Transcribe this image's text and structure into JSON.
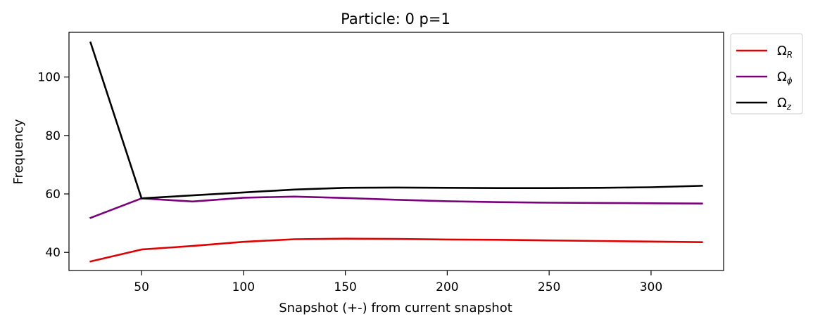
{
  "chart_data": {
    "type": "line",
    "title": "Particle: 0 p=1",
    "xlabel": "Snapshot (+-) from current snapshot",
    "ylabel": "Frequency",
    "xlim": [
      14.4,
      335.6
    ],
    "ylim": [
      33.8,
      115.3
    ],
    "xticks": [
      50,
      100,
      150,
      200,
      250,
      300
    ],
    "yticks": [
      40,
      60,
      80,
      100
    ],
    "grid": false,
    "legend_placement": "outside top-right",
    "series": [
      {
        "name": "Ω_R",
        "legend_main": "Ω",
        "legend_sub": "R",
        "color": "#e00000",
        "x": [
          25,
          50,
          75,
          100,
          125,
          150,
          175,
          200,
          225,
          250,
          275,
          300,
          325
        ],
        "y": [
          36.9,
          41.0,
          42.2,
          43.6,
          44.5,
          44.7,
          44.6,
          44.4,
          44.3,
          44.1,
          43.9,
          43.7,
          43.5
        ]
      },
      {
        "name": "Ω_φ",
        "legend_main": "Ω",
        "legend_sub": "ϕ",
        "color": "#7b007b",
        "x": [
          25,
          50,
          75,
          100,
          125,
          150,
          175,
          200,
          225,
          250,
          275,
          300,
          325
        ],
        "y": [
          51.8,
          58.5,
          57.4,
          58.7,
          59.1,
          58.6,
          58.0,
          57.5,
          57.2,
          57.0,
          56.9,
          56.8,
          56.7
        ]
      },
      {
        "name": "Ω_z",
        "legend_main": "Ω",
        "legend_sub": "z",
        "color": "#000000",
        "x": [
          25,
          50,
          75,
          100,
          125,
          150,
          175,
          200,
          225,
          250,
          275,
          300,
          325
        ],
        "y": [
          111.8,
          58.5,
          59.5,
          60.5,
          61.5,
          62.1,
          62.2,
          62.1,
          62.0,
          62.0,
          62.1,
          62.3,
          62.8
        ]
      }
    ]
  }
}
